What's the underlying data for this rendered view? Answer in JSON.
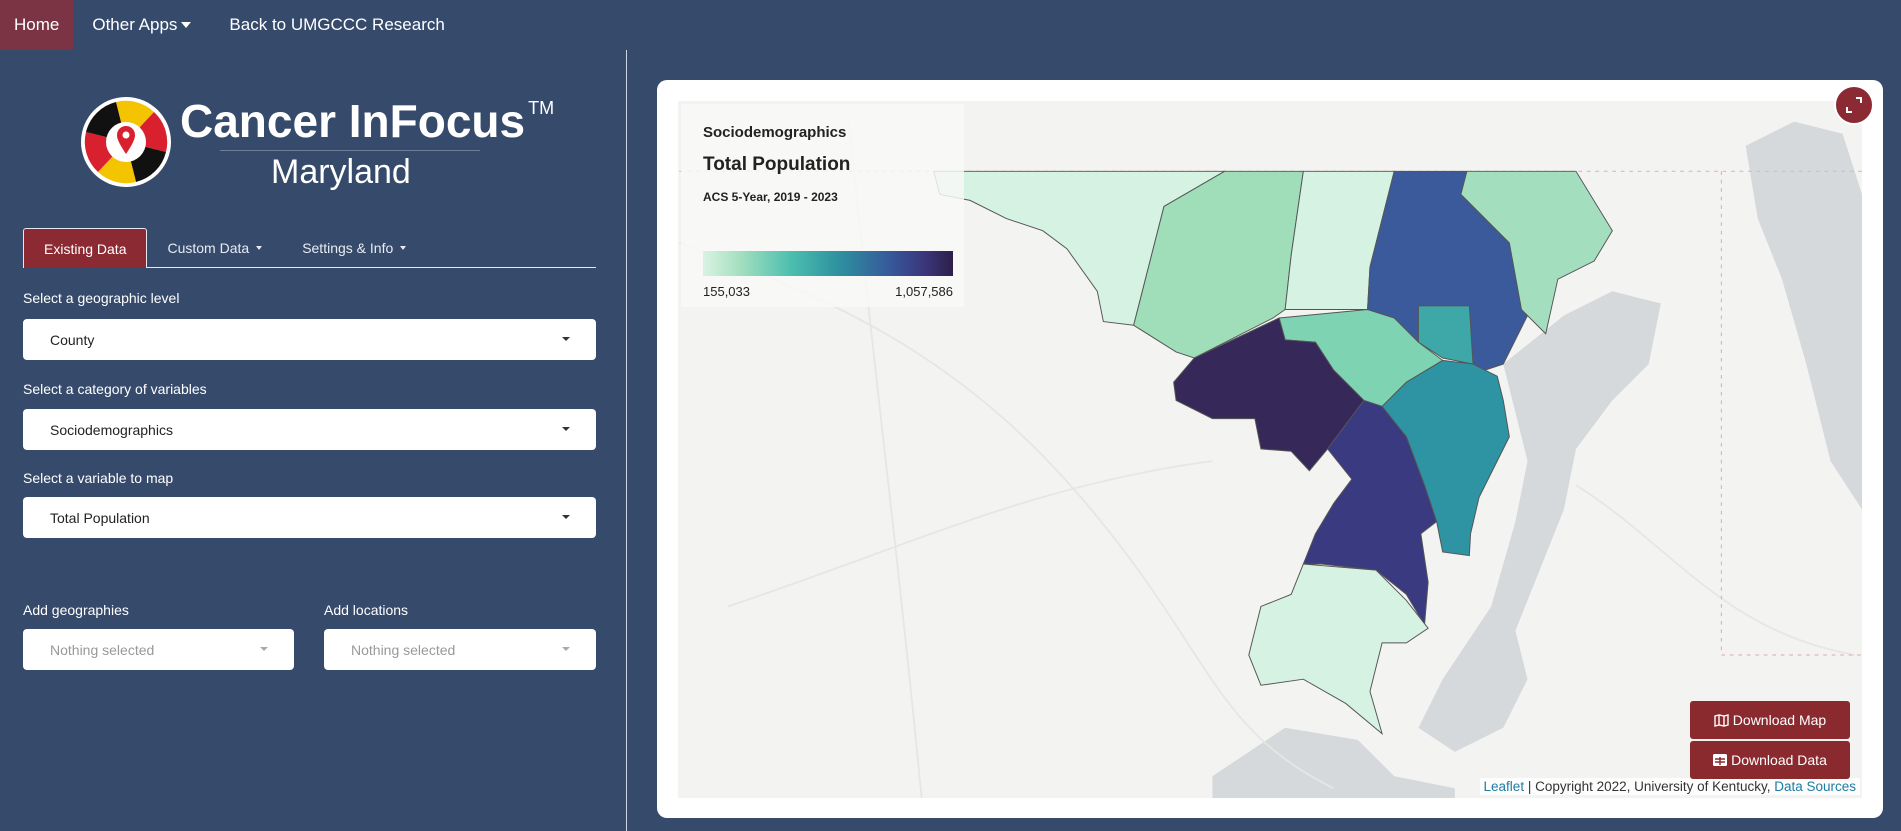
{
  "nav": {
    "home": "Home",
    "other_apps": "Other Apps",
    "back": "Back to UMGCCC Research"
  },
  "logo": {
    "title": "Cancer InFocus",
    "tm": "TM",
    "subtitle": "Maryland"
  },
  "tabs": [
    {
      "label": "Existing Data"
    },
    {
      "label": "Custom Data"
    },
    {
      "label": "Settings & Info"
    }
  ],
  "form": {
    "geo_label": "Select a geographic level",
    "geo_value": "County",
    "cat_label": "Select a category of variables",
    "cat_value": "Sociodemographics",
    "var_label": "Select a variable to map",
    "var_value": "Total Population",
    "add_geo_label": "Add geographies",
    "add_geo_placeholder": "Nothing selected",
    "add_loc_label": "Add locations",
    "add_loc_placeholder": "Nothing selected"
  },
  "legend": {
    "category": "Sociodemographics",
    "variable": "Total Population",
    "source": "ACS 5-Year, 2019 - 2023",
    "min": "155,033",
    "max": "1,057,586"
  },
  "buttons": {
    "download_map": "Download Map",
    "download_data": "Download Data"
  },
  "attribution": {
    "leaflet": "Leaflet",
    "copyright": " | Copyright 2022, University of Kentucky, ",
    "sources": "Data Sources"
  },
  "colors": {
    "navy": "#364a6b",
    "accent": "#8b2a32"
  }
}
